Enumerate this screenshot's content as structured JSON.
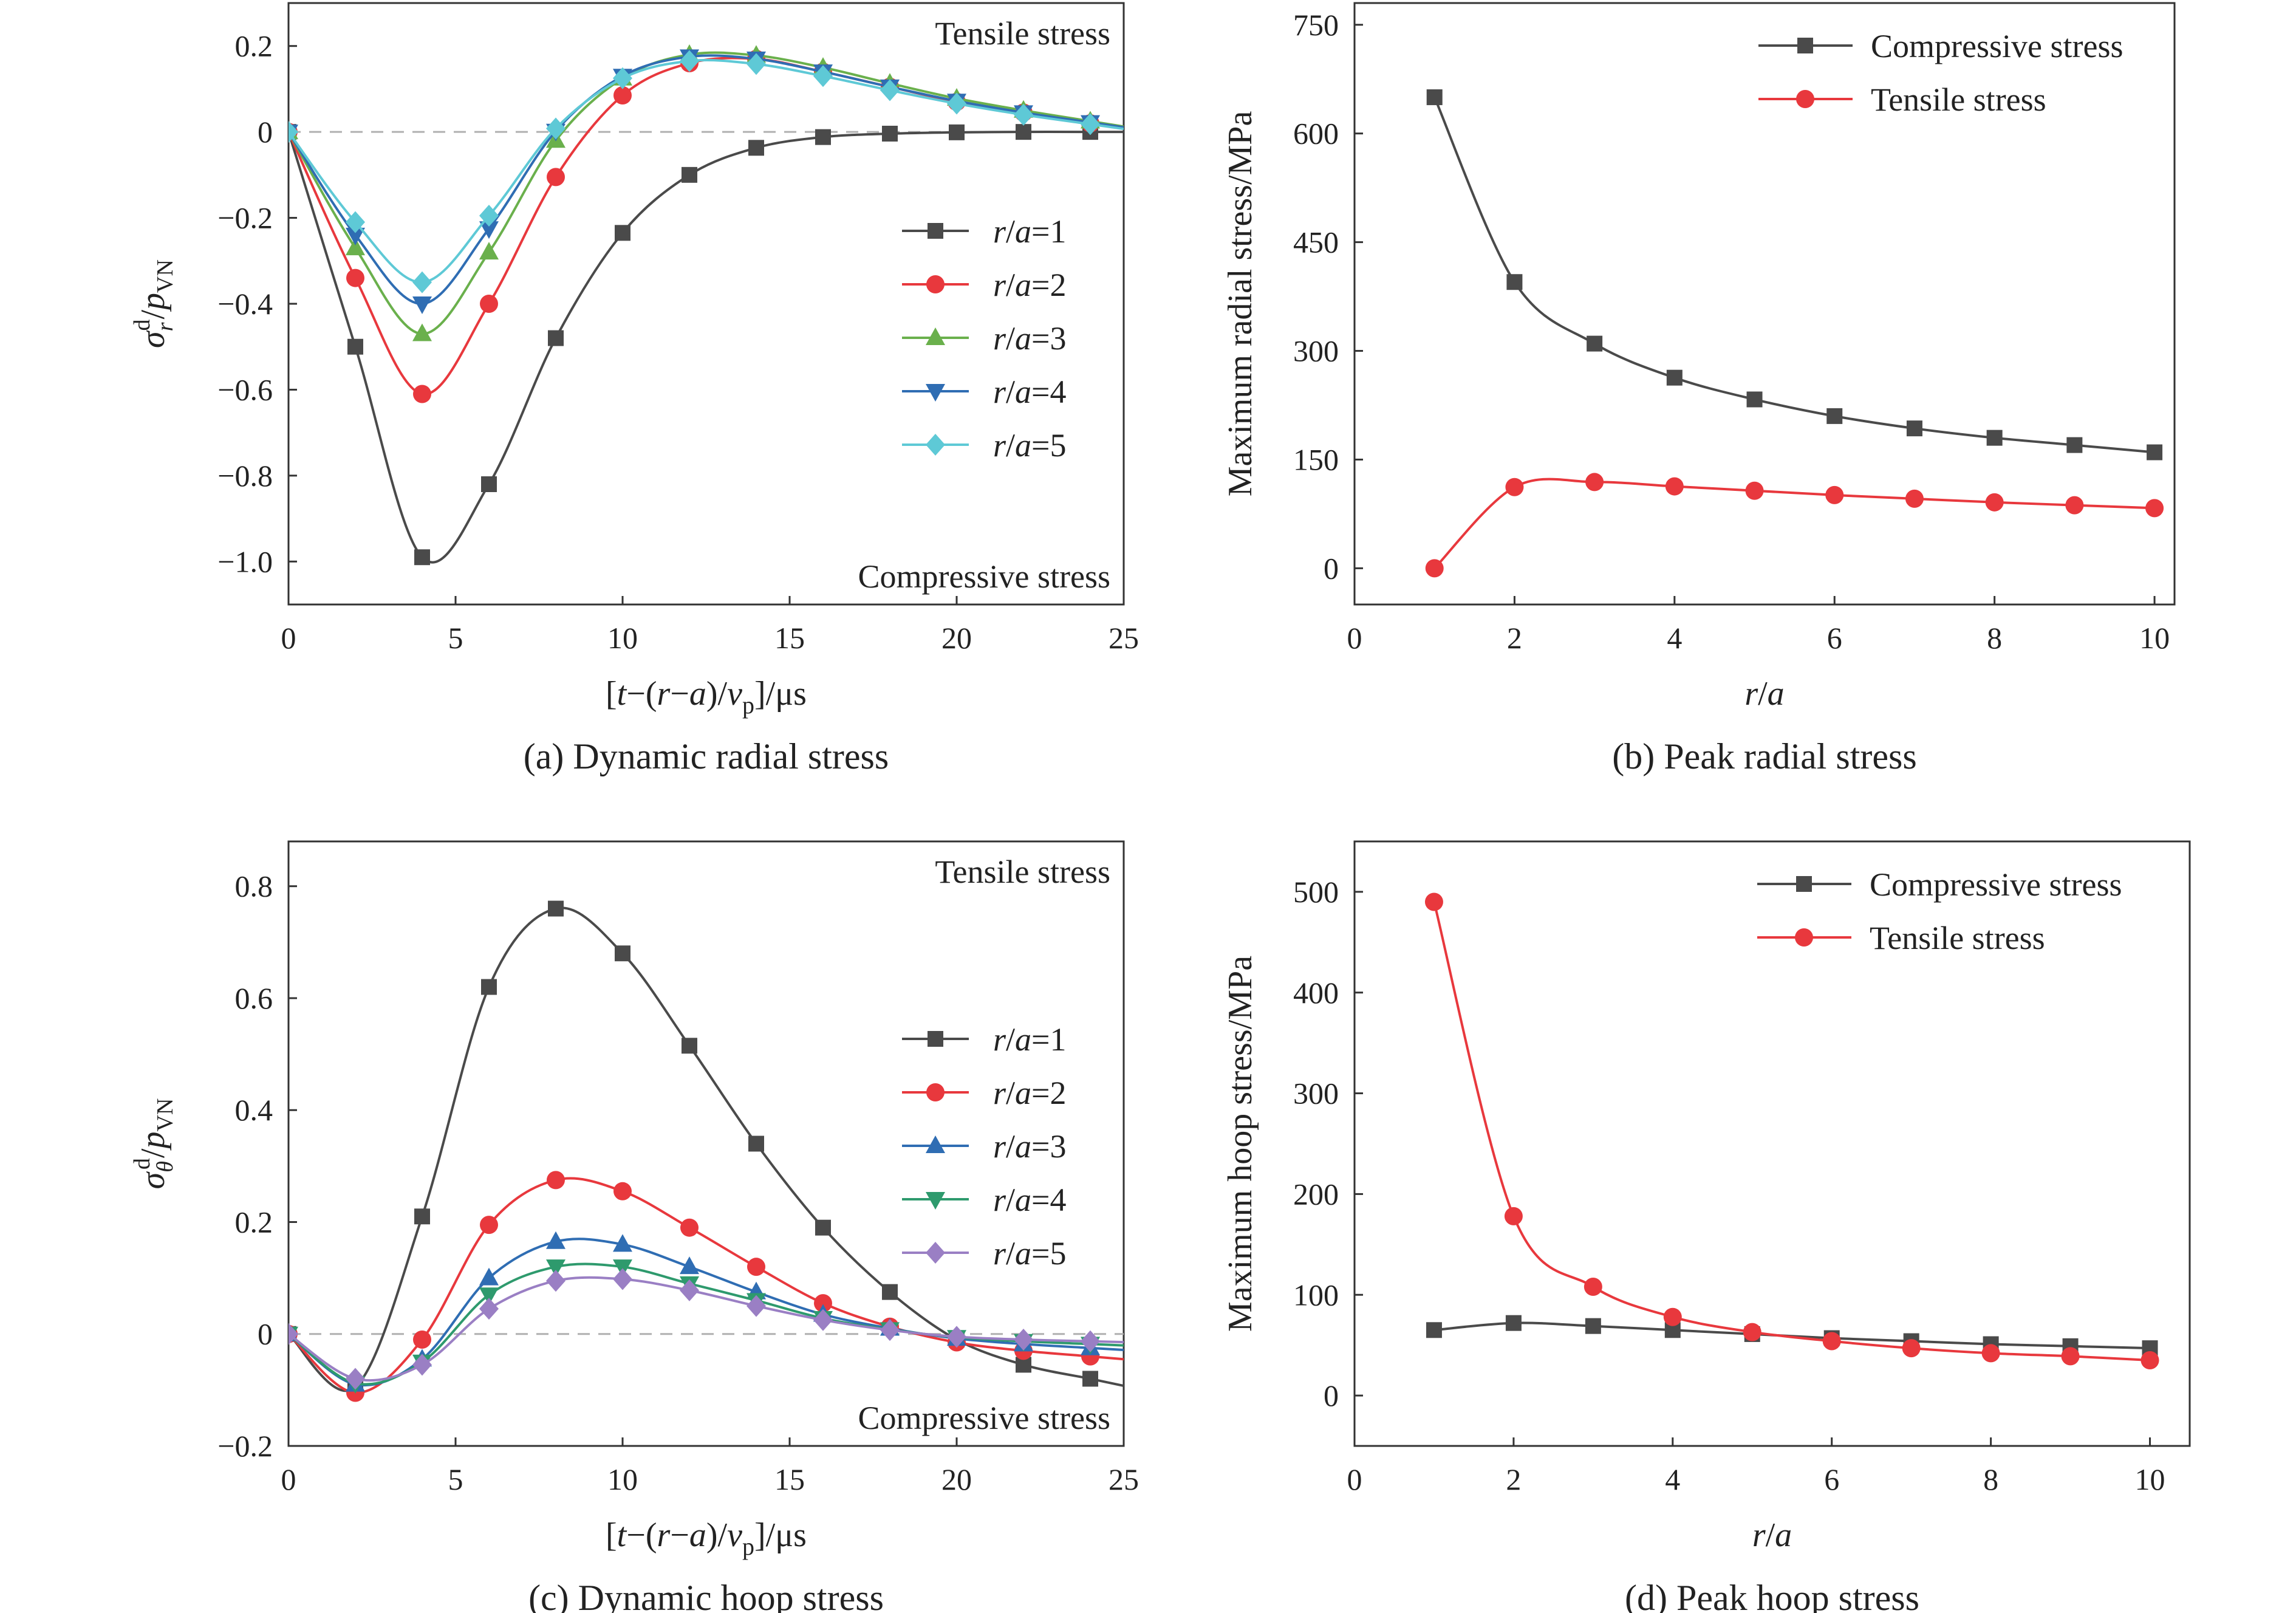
{
  "colors": {
    "s1": "#4a4a4a",
    "s2": "#e8383d",
    "s3": "#2f6db3",
    "s4": "#2e9a6d",
    "s5": "#9a7fc4",
    "s3a": "#6ab04c",
    "s5a": "#5ec9d6",
    "zero_line": "#b0b0b0",
    "axis": "#333333"
  },
  "chart_data": [
    {
      "type": "line",
      "caption": "(a) Dynamic radial stress",
      "xlabel": "[t−(r−a)/vp]/μs",
      "ylabel": "σrd/pVN",
      "xlim": [
        0,
        25
      ],
      "ylim": [
        -1.1,
        0.3
      ],
      "xticks": [
        "0",
        "5",
        "10",
        "15",
        "20",
        "25"
      ],
      "yticks": [
        "−1.0",
        "−0.8",
        "−0.6",
        "−0.4",
        "−0.2",
        "0",
        "0.2"
      ],
      "annotations": {
        "top": "Tensile stress",
        "bottom": "Compressive stress"
      },
      "legend_placement": "center-right",
      "zero_line": true,
      "x": [
        0,
        2,
        4,
        6,
        8,
        10,
        12,
        14,
        16,
        18,
        20,
        22,
        24
      ],
      "series": [
        {
          "name": "r/a=1",
          "color": "s1",
          "marker": "square",
          "values": [
            0,
            -0.5,
            -0.99,
            -0.82,
            -0.48,
            -0.235,
            -0.1,
            -0.037,
            -0.012,
            -0.004,
            -0.001,
            0,
            0
          ]
        },
        {
          "name": "r/a=2",
          "color": "s2",
          "marker": "circle",
          "values": [
            0,
            -0.34,
            -0.61,
            -0.4,
            -0.105,
            0.085,
            0.16,
            0.17,
            0.14,
            0.105,
            0.07,
            0.045,
            0.02
          ]
        },
        {
          "name": "r/a=3",
          "color": "s3a",
          "marker": "triangle-up",
          "values": [
            0,
            -0.27,
            -0.47,
            -0.28,
            -0.02,
            0.125,
            0.18,
            0.178,
            0.15,
            0.113,
            0.078,
            0.05,
            0.025
          ]
        },
        {
          "name": "r/a=4",
          "color": "s3",
          "marker": "triangle-down",
          "values": [
            0,
            -0.24,
            -0.4,
            -0.225,
            0.002,
            0.13,
            0.175,
            0.17,
            0.14,
            0.105,
            0.072,
            0.045,
            0.022
          ]
        },
        {
          "name": "r/a=5",
          "color": "s5a",
          "marker": "diamond",
          "values": [
            0,
            -0.21,
            -0.35,
            -0.195,
            0.008,
            0.125,
            0.165,
            0.158,
            0.13,
            0.097,
            0.066,
            0.04,
            0.018
          ]
        }
      ]
    },
    {
      "type": "line",
      "caption": "(b) Peak radial stress",
      "xlabel": "r/a",
      "ylabel": "Maximum radial stress/MPa",
      "xlim": [
        0,
        10.25
      ],
      "ylim": [
        -50,
        780
      ],
      "xticks": [
        "0",
        "2",
        "4",
        "6",
        "8",
        "10"
      ],
      "yticks": [
        "0",
        "150",
        "300",
        "450",
        "600",
        "750"
      ],
      "legend_placement": "top-right",
      "x": [
        1,
        2,
        3,
        4,
        5,
        6,
        7,
        8,
        9,
        10
      ],
      "series": [
        {
          "name": "Compressive stress",
          "color": "s1",
          "marker": "square",
          "values": [
            650,
            395,
            310,
            263,
            233,
            210,
            193,
            180,
            170,
            160
          ]
        },
        {
          "name": "Tensile stress",
          "color": "s2",
          "marker": "circle",
          "values": [
            0,
            112,
            119,
            113,
            107,
            101,
            96,
            91,
            87,
            83
          ]
        }
      ]
    },
    {
      "type": "line",
      "caption": "(c) Dynamic hoop stress",
      "xlabel": "[t−(r−a)/vp]/μs",
      "ylabel": "σθd/pVN",
      "xlim": [
        0,
        25
      ],
      "ylim": [
        -0.2,
        0.88
      ],
      "xticks": [
        "0",
        "5",
        "10",
        "15",
        "20",
        "25"
      ],
      "yticks": [
        "−0.2",
        "0",
        "0.2",
        "0.4",
        "0.6",
        "0.8"
      ],
      "annotations": {
        "top": "Tensile stress",
        "bottom": "Compressive stress"
      },
      "legend_placement": "center-right",
      "zero_line": true,
      "x": [
        0,
        2,
        4,
        6,
        8,
        10,
        12,
        14,
        16,
        18,
        20,
        22,
        24
      ],
      "series": [
        {
          "name": "r/a=1",
          "color": "s1",
          "marker": "square",
          "values": [
            0,
            -0.095,
            0.21,
            0.62,
            0.76,
            0.68,
            0.515,
            0.34,
            0.19,
            0.075,
            -0.01,
            -0.055,
            -0.08
          ]
        },
        {
          "name": "r/a=2",
          "color": "s2",
          "marker": "circle",
          "values": [
            0,
            -0.105,
            -0.01,
            0.195,
            0.275,
            0.255,
            0.19,
            0.12,
            0.055,
            0.013,
            -0.015,
            -0.03,
            -0.04
          ]
        },
        {
          "name": "r/a=3",
          "color": "s3",
          "marker": "triangle-up",
          "values": [
            0,
            -0.09,
            -0.045,
            0.1,
            0.165,
            0.16,
            0.12,
            0.075,
            0.035,
            0.01,
            -0.008,
            -0.018,
            -0.025
          ]
        },
        {
          "name": "r/a=4",
          "color": "s4",
          "marker": "triangle-down",
          "values": [
            0,
            -0.088,
            -0.05,
            0.07,
            0.12,
            0.12,
            0.09,
            0.06,
            0.028,
            0.008,
            -0.006,
            -0.013,
            -0.018
          ]
        },
        {
          "name": "r/a=5",
          "color": "s5",
          "marker": "diamond",
          "values": [
            0,
            -0.08,
            -0.055,
            0.045,
            0.095,
            0.098,
            0.078,
            0.05,
            0.025,
            0.007,
            -0.005,
            -0.01,
            -0.013
          ]
        }
      ]
    },
    {
      "type": "line",
      "caption": "(d) Peak hoop stress",
      "xlabel": "r/a",
      "ylabel": "Maximum hoop stress/MPa",
      "xlim": [
        0,
        10.5
      ],
      "ylim": [
        -50,
        550
      ],
      "xticks": [
        "0",
        "2",
        "4",
        "6",
        "8",
        "10"
      ],
      "yticks": [
        "0",
        "100",
        "200",
        "300",
        "400",
        "500"
      ],
      "legend_placement": "top-right",
      "x": [
        1,
        2,
        3,
        4,
        5,
        6,
        7,
        8,
        9,
        10
      ],
      "series": [
        {
          "name": "Compressive stress",
          "color": "s1",
          "marker": "square",
          "values": [
            65,
            72,
            69,
            65,
            61,
            57,
            54,
            51,
            49,
            47
          ]
        },
        {
          "name": "Tensile stress",
          "color": "s2",
          "marker": "circle",
          "values": [
            490,
            178,
            108,
            78,
            63,
            54,
            47,
            42,
            39,
            35
          ]
        }
      ]
    }
  ]
}
